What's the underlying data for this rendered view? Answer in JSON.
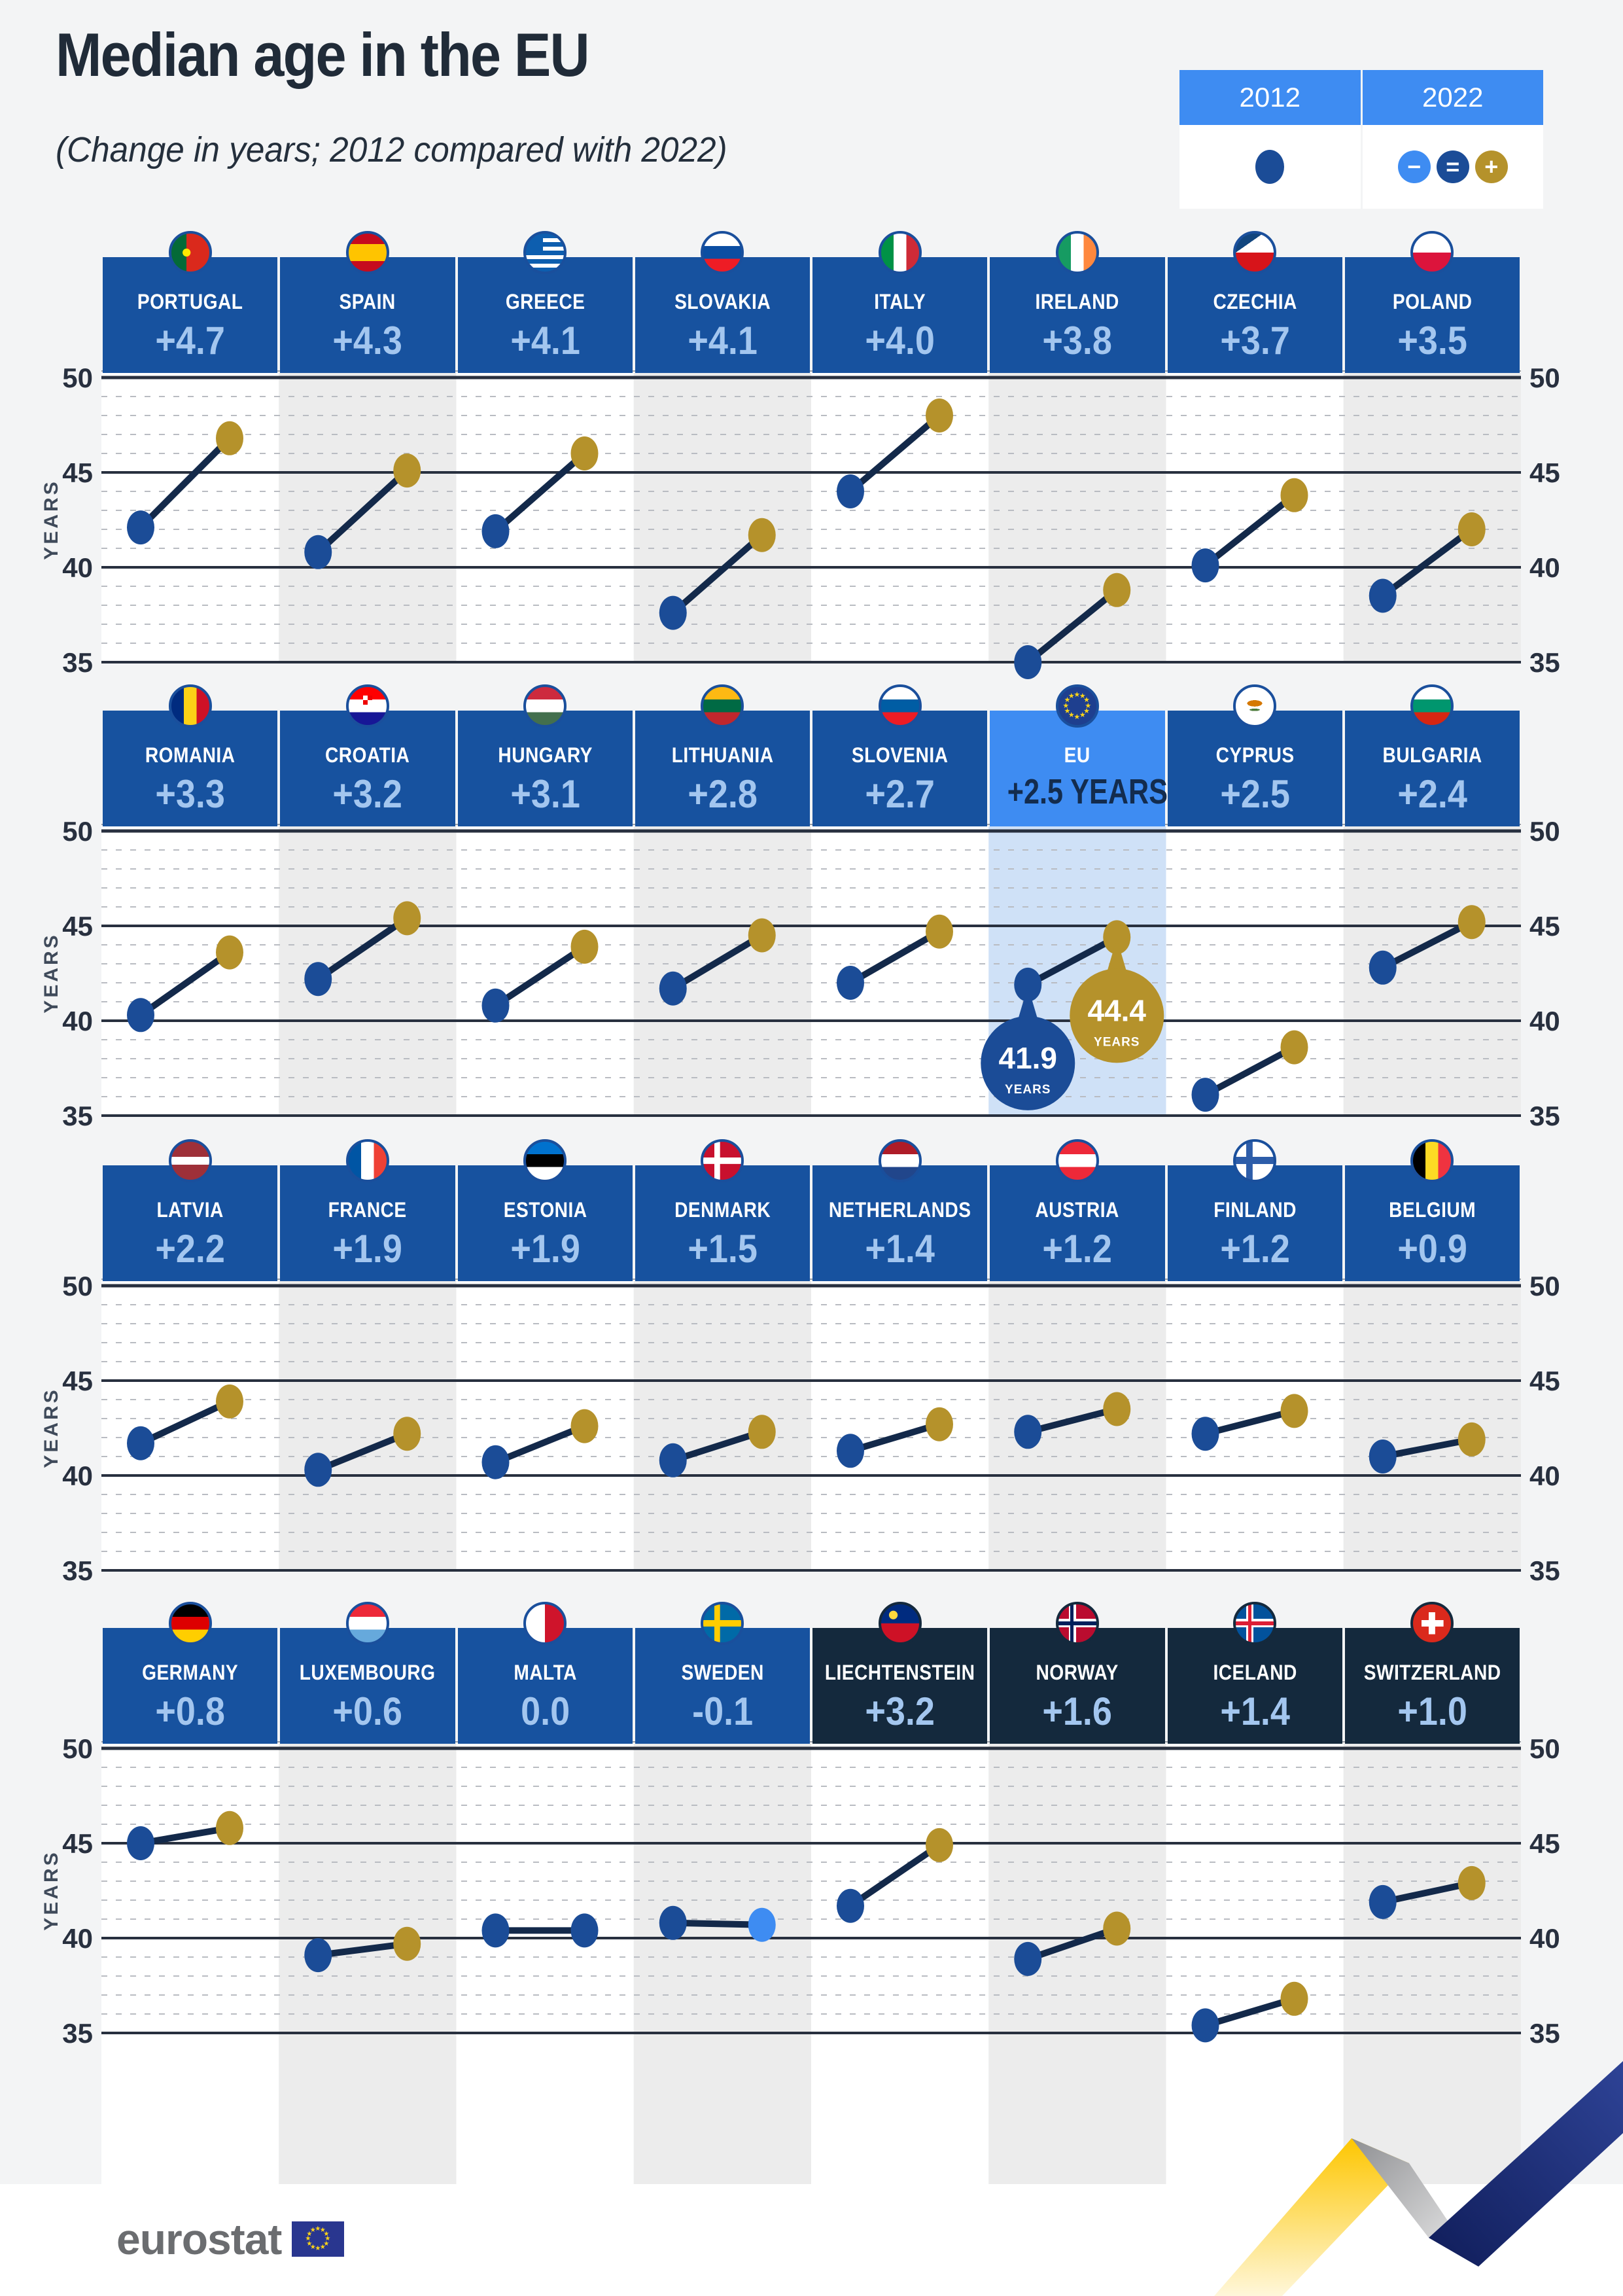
{
  "title": "Median age in the EU",
  "subtitle": "(Change in years; 2012 compared with 2022)",
  "legend": {
    "col2012": "2012",
    "col2022": "2022",
    "markers_2022": [
      {
        "kind": "decrease",
        "glyph": "−",
        "color": "#3e8cf2"
      },
      {
        "kind": "equal",
        "glyph": "=",
        "color": "#1b4c97"
      },
      {
        "kind": "increase",
        "glyph": "+",
        "color": "#b5922b"
      }
    ]
  },
  "axis": {
    "ylabel": "YEARS",
    "ticks": [
      "50",
      "45",
      "40",
      "35"
    ],
    "ymin": 35,
    "ymax": 50
  },
  "eu_callout": {
    "v2012": "41.9",
    "v2022": "44.4",
    "unit": "YEARS"
  },
  "footer": {
    "logo_text": "eurostat"
  },
  "colors": {
    "background": "#f3f4f5",
    "panel_blue": "#17529f",
    "efta_navy": "#14293d",
    "eu_accent": "#3e8cf2",
    "eu_band": "#cfe1f7",
    "value_text": "#a3c6ef",
    "eu_value_text": "#132c4e",
    "dot_2012": "#1b4c97",
    "dot_2022_up": "#b5922b",
    "dot_2022_down": "#3e8cf2",
    "slope_line": "#13294a",
    "grid_solid": "#28303f",
    "grid_dashed": "#b9bcc2",
    "stripe_white": "#ffffff",
    "stripe_gray": "#ececec",
    "flag_ring": "#1a4f9c",
    "ribbon_yellow": "#fdc600",
    "ribbon_silver": "#b9b9b9",
    "ribbon_navy": "#22357f"
  },
  "chart_data": {
    "type": "slope",
    "title": "Median age in the EU",
    "subtitle": "(Change in years; 2012 compared with 2022)",
    "years": [
      "2012",
      "2022"
    ],
    "ylabel": "YEARS",
    "ylim": [
      35,
      50
    ],
    "grid": "solid major at 35/40/45/50, dashed every year",
    "legend_position": "top-right",
    "rows": [
      [
        {
          "name": "PORTUGAL",
          "change": "+4.7",
          "flag": "portugal",
          "group": "eu",
          "y2012": 42.1,
          "y2022": 46.8
        },
        {
          "name": "SPAIN",
          "change": "+4.3",
          "flag": "spain",
          "group": "eu",
          "y2012": 40.8,
          "y2022": 45.1
        },
        {
          "name": "GREECE",
          "change": "+4.1",
          "flag": "greece",
          "group": "eu",
          "y2012": 41.9,
          "y2022": 46.0
        },
        {
          "name": "SLOVAKIA",
          "change": "+4.1",
          "flag": "slovakia",
          "group": "eu",
          "y2012": 37.6,
          "y2022": 41.7
        },
        {
          "name": "ITALY",
          "change": "+4.0",
          "flag": "italy",
          "group": "eu",
          "y2012": 44.0,
          "y2022": 48.0
        },
        {
          "name": "IRELAND",
          "change": "+3.8",
          "flag": "ireland",
          "group": "eu",
          "y2012": 35.0,
          "y2022": 38.8
        },
        {
          "name": "CZECHIA",
          "change": "+3.7",
          "flag": "czechia",
          "group": "eu",
          "y2012": 40.1,
          "y2022": 43.8
        },
        {
          "name": "POLAND",
          "change": "+3.5",
          "flag": "poland",
          "group": "eu",
          "y2012": 38.5,
          "y2022": 42.0
        }
      ],
      [
        {
          "name": "ROMANIA",
          "change": "+3.3",
          "flag": "romania",
          "group": "eu",
          "y2012": 40.3,
          "y2022": 43.6
        },
        {
          "name": "CROATIA",
          "change": "+3.2",
          "flag": "croatia",
          "group": "eu",
          "y2012": 42.2,
          "y2022": 45.4
        },
        {
          "name": "HUNGARY",
          "change": "+3.1",
          "flag": "hungary",
          "group": "eu",
          "y2012": 40.8,
          "y2022": 43.9
        },
        {
          "name": "LITHUANIA",
          "change": "+2.8",
          "flag": "lithuania",
          "group": "eu",
          "y2012": 41.7,
          "y2022": 44.5
        },
        {
          "name": "SLOVENIA",
          "change": "+2.7",
          "flag": "slovenia",
          "group": "eu",
          "y2012": 42.0,
          "y2022": 44.7
        },
        {
          "name": "EU",
          "change": "+2.5 YEARS",
          "flag": "eu",
          "group": "eu-aggregate",
          "y2012": 41.9,
          "y2022": 44.4,
          "callout": true
        },
        {
          "name": "CYPRUS",
          "change": "+2.5",
          "flag": "cyprus",
          "group": "eu",
          "y2012": 36.1,
          "y2022": 38.6
        },
        {
          "name": "BULGARIA",
          "change": "+2.4",
          "flag": "bulgaria",
          "group": "eu",
          "y2012": 42.8,
          "y2022": 45.2
        }
      ],
      [
        {
          "name": "LATVIA",
          "change": "+2.2",
          "flag": "latvia",
          "group": "eu",
          "y2012": 41.7,
          "y2022": 43.9
        },
        {
          "name": "FRANCE",
          "change": "+1.9",
          "flag": "france",
          "group": "eu",
          "y2012": 40.3,
          "y2022": 42.2
        },
        {
          "name": "ESTONIA",
          "change": "+1.9",
          "flag": "estonia",
          "group": "eu",
          "y2012": 40.7,
          "y2022": 42.6
        },
        {
          "name": "DENMARK",
          "change": "+1.5",
          "flag": "denmark",
          "group": "eu",
          "y2012": 40.8,
          "y2022": 42.3
        },
        {
          "name": "NETHERLANDS",
          "change": "+1.4",
          "flag": "netherlands",
          "group": "eu",
          "y2012": 41.3,
          "y2022": 42.7
        },
        {
          "name": "AUSTRIA",
          "change": "+1.2",
          "flag": "austria",
          "group": "eu",
          "y2012": 42.3,
          "y2022": 43.5
        },
        {
          "name": "FINLAND",
          "change": "+1.2",
          "flag": "finland",
          "group": "eu",
          "y2012": 42.2,
          "y2022": 43.4
        },
        {
          "name": "BELGIUM",
          "change": "+0.9",
          "flag": "belgium",
          "group": "eu",
          "y2012": 41.0,
          "y2022": 41.9
        }
      ],
      [
        {
          "name": "GERMANY",
          "change": "+0.8",
          "flag": "germany",
          "group": "eu",
          "y2012": 45.0,
          "y2022": 45.8
        },
        {
          "name": "LUXEMBOURG",
          "change": "+0.6",
          "flag": "luxembourg",
          "group": "eu",
          "y2012": 39.1,
          "y2022": 39.7
        },
        {
          "name": "MALTA",
          "change": "0.0",
          "flag": "malta",
          "group": "eu",
          "y2012": 40.4,
          "y2022": 40.4,
          "marker2022": "equal"
        },
        {
          "name": "SWEDEN",
          "change": "-0.1",
          "flag": "sweden",
          "group": "eu",
          "y2012": 40.8,
          "y2022": 40.7,
          "marker2022": "down"
        },
        {
          "name": "LIECHTENSTEIN",
          "change": "+3.2",
          "flag": "liechtenstein",
          "group": "efta",
          "y2012": 41.7,
          "y2022": 44.9
        },
        {
          "name": "NORWAY",
          "change": "+1.6",
          "flag": "norway",
          "group": "efta",
          "y2012": 38.9,
          "y2022": 40.5
        },
        {
          "name": "ICELAND",
          "change": "+1.4",
          "flag": "iceland",
          "group": "efta",
          "y2012": 35.4,
          "y2022": 36.8
        },
        {
          "name": "SWITZERLAND",
          "change": "+1.0",
          "flag": "switzerland",
          "group": "efta",
          "y2012": 41.9,
          "y2022": 42.9
        }
      ]
    ]
  }
}
